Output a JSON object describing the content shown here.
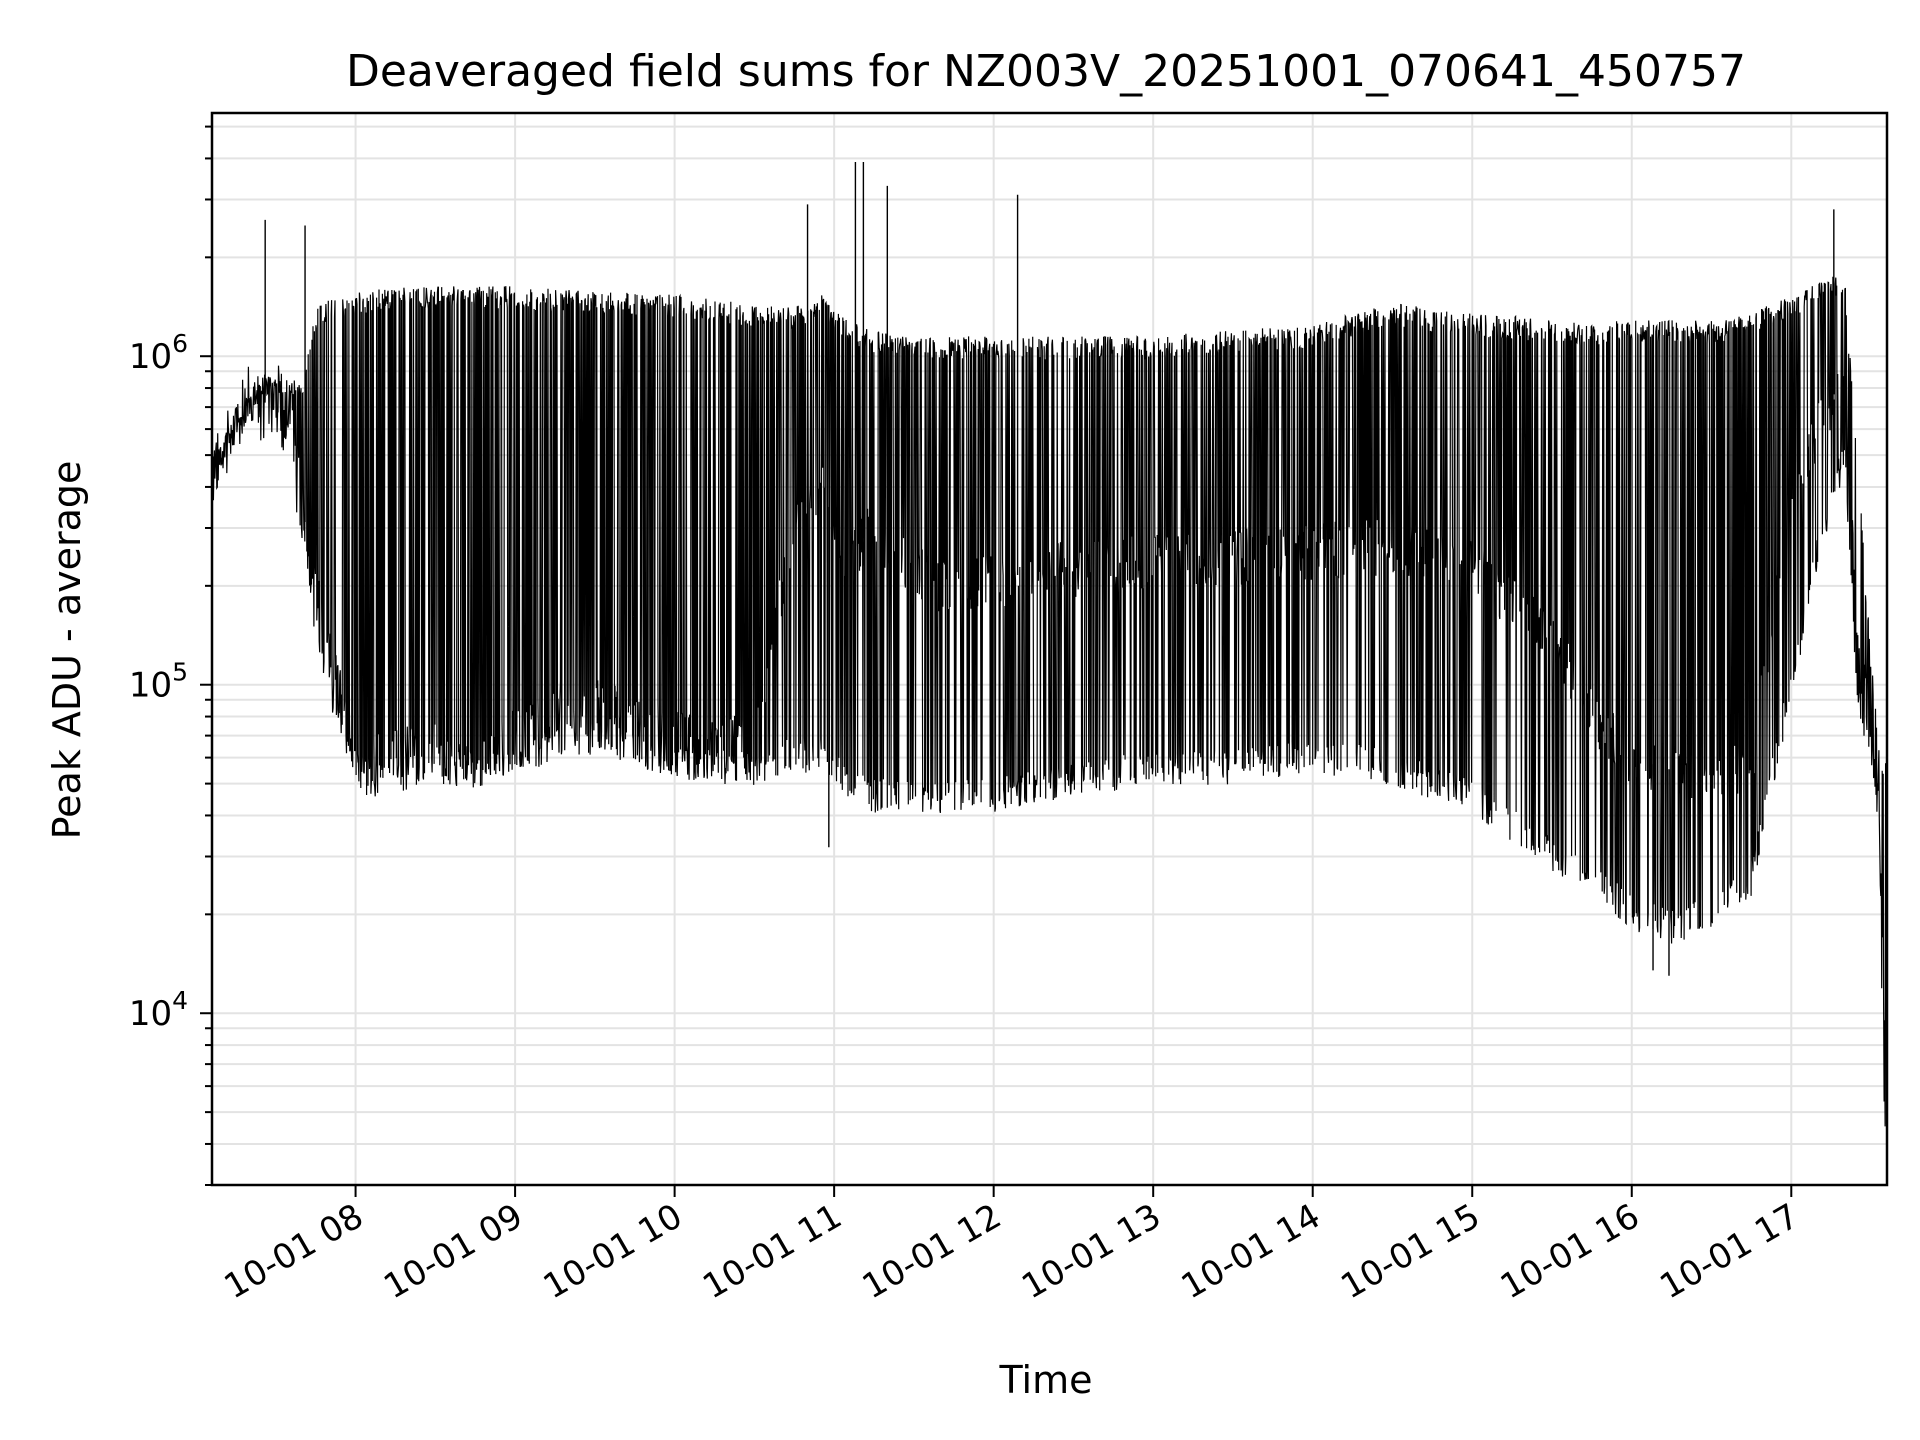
{
  "chart_data": {
    "type": "line",
    "title": "Deaveraged field sums for NZ003V_20251001_070641_450757",
    "xlabel": "Time",
    "ylabel": "Peak ADU - average",
    "y_scale": "log",
    "grid": true,
    "x_range": [
      "10-01 07:06",
      "10-01 17:36"
    ],
    "ylim": [
      3000,
      5500000
    ],
    "x_ticks": [
      "10-01 08",
      "10-01 09",
      "10-01 10",
      "10-01 11",
      "10-01 12",
      "10-01 13",
      "10-01 14",
      "10-01 15",
      "10-01 16",
      "10-01 17"
    ],
    "y_ticks": [
      {
        "value": 10000,
        "base": "10",
        "exp": "4"
      },
      {
        "value": 100000,
        "base": "10",
        "exp": "5"
      },
      {
        "value": 1000000,
        "base": "10",
        "exp": "6"
      }
    ],
    "line_color": "#000000",
    "series": [
      {
        "x": [
          "10-01 07:06",
          "10-01 07:15",
          "10-01 07:20",
          "10-01 07:25",
          "10-01 07:30",
          "10-01 07:35",
          "10-01 07:40",
          "10-01 07:45",
          "10-01 07:50",
          "10-01 07:55",
          "10-01 08:00",
          "10-01 08:05",
          "10-01 08:15",
          "10-01 08:30",
          "10-01 08:45",
          "10-01 09:00",
          "10-01 09:15",
          "10-01 09:30",
          "10-01 09:45",
          "10-01 10:00",
          "10-01 10:15",
          "10-01 10:30",
          "10-01 10:45",
          "10-01 10:55",
          "10-01 11:05",
          "10-01 11:15",
          "10-01 11:30",
          "10-01 11:45",
          "10-01 12:00",
          "10-01 12:30",
          "10-01 13:00",
          "10-01 13:30",
          "10-01 14:00",
          "10-01 14:30",
          "10-01 15:00",
          "10-01 15:30",
          "10-01 15:45",
          "10-01 16:00",
          "10-01 16:15",
          "10-01 16:30",
          "10-01 16:45",
          "10-01 17:00",
          "10-01 17:10",
          "10-01 17:20",
          "10-01 17:25",
          "10-01 17:30",
          "10-01 17:33",
          "10-01 17:35"
        ],
        "y": [
          450000,
          650000,
          800000,
          750000,
          850000,
          700000,
          350000,
          200000,
          130000,
          90000,
          65000,
          58000,
          62000,
          65000,
          62000,
          70000,
          85000,
          90000,
          78000,
          70000,
          65000,
          70000,
          300000,
          400000,
          250000,
          300000,
          220000,
          200000,
          210000,
          230000,
          240000,
          250000,
          260000,
          270000,
          230000,
          140000,
          80000,
          60000,
          55000,
          50000,
          58000,
          350000,
          600000,
          900000,
          120000,
          80000,
          50000,
          9000
        ],
        "high": [
          500000,
          700000,
          850000,
          900000,
          900000,
          880000,
          800000,
          1400000,
          1500000,
          1500000,
          1550000,
          1600000,
          1620000,
          1630000,
          1640000,
          1650000,
          1600000,
          1580000,
          1560000,
          1540000,
          1500000,
          1450000,
          1400000,
          1600000,
          1300000,
          1200000,
          1150000,
          1150000,
          1150000,
          1150000,
          1150000,
          1200000,
          1250000,
          1450000,
          1350000,
          1300000,
          1250000,
          1300000,
          1300000,
          1280000,
          1350000,
          1550000,
          1700000,
          1800000,
          500000,
          120000,
          70000,
          60000
        ],
        "low": [
          380000,
          550000,
          700000,
          600000,
          650000,
          500000,
          280000,
          150000,
          100000,
          70000,
          55000,
          50000,
          52000,
          55000,
          53000,
          58000,
          65000,
          68000,
          62000,
          58000,
          55000,
          55000,
          60000,
          60000,
          50000,
          45000,
          45000,
          45000,
          45000,
          50000,
          55000,
          55000,
          60000,
          55000,
          45000,
          30000,
          25000,
          20000,
          18000,
          20000,
          25000,
          100000,
          250000,
          500000,
          90000,
          65000,
          40000,
          4500
        ]
      }
    ],
    "peaks": [
      {
        "x": "10-01 07:26",
        "y": 2600000
      },
      {
        "x": "10-01 07:41",
        "y": 2500000
      },
      {
        "x": "10-01 10:50",
        "y": 2900000
      },
      {
        "x": "10-01 11:08",
        "y": 3900000
      },
      {
        "x": "10-01 11:11",
        "y": 3900000
      },
      {
        "x": "10-01 11:20",
        "y": 3300000
      },
      {
        "x": "10-01 12:09",
        "y": 3100000
      },
      {
        "x": "10-01 17:16",
        "y": 2800000
      }
    ],
    "dips": [
      {
        "x": "10-01 10:58",
        "y": 32000
      },
      {
        "x": "10-01 16:14",
        "y": 13000
      },
      {
        "x": "10-01 16:08",
        "y": 13500
      }
    ]
  }
}
